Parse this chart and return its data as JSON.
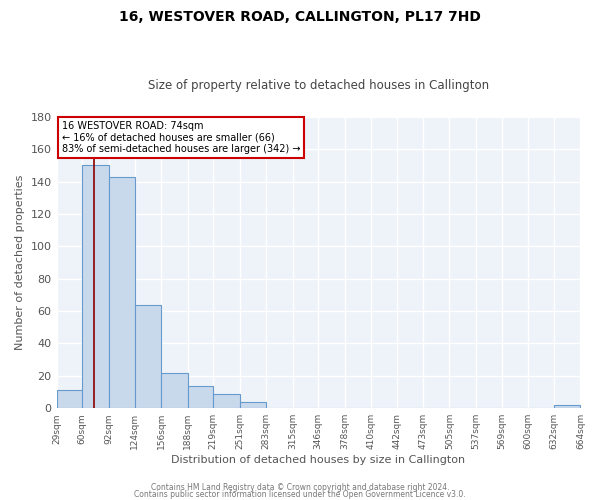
{
  "title": "16, WESTOVER ROAD, CALLINGTON, PL17 7HD",
  "subtitle": "Size of property relative to detached houses in Callington",
  "xlabel": "Distribution of detached houses by size in Callington",
  "ylabel": "Number of detached properties",
  "bar_color": "#c9d9ec",
  "bar_edge_color": "#6699cc",
  "bg_color": "#eef3f9",
  "grid_color": "#ffffff",
  "red_line_x": 74,
  "bin_edges": [
    29,
    60,
    92,
    124,
    156,
    188,
    219,
    251,
    283,
    315,
    346,
    378,
    410,
    442,
    473,
    505,
    537,
    569,
    600,
    632,
    664
  ],
  "bar_heights": [
    11,
    150,
    143,
    64,
    22,
    14,
    9,
    4,
    0,
    0,
    0,
    0,
    0,
    0,
    0,
    0,
    0,
    0,
    0,
    2
  ],
  "ylim": [
    0,
    180
  ],
  "yticks": [
    0,
    20,
    40,
    60,
    80,
    100,
    120,
    140,
    160,
    180
  ],
  "xtick_labels": [
    "29sqm",
    "60sqm",
    "92sqm",
    "124sqm",
    "156sqm",
    "188sqm",
    "219sqm",
    "251sqm",
    "283sqm",
    "315sqm",
    "346sqm",
    "378sqm",
    "410sqm",
    "442sqm",
    "473sqm",
    "505sqm",
    "537sqm",
    "569sqm",
    "600sqm",
    "632sqm",
    "664sqm"
  ],
  "annotation_line1": "16 WESTOVER ROAD: 74sqm",
  "annotation_line2": "← 16% of detached houses are smaller (66)",
  "annotation_line3": "83% of semi-detached houses are larger (342) →",
  "footer_line1": "Contains HM Land Registry data © Crown copyright and database right 2024.",
  "footer_line2": "Contains public sector information licensed under the Open Government Licence v3.0."
}
